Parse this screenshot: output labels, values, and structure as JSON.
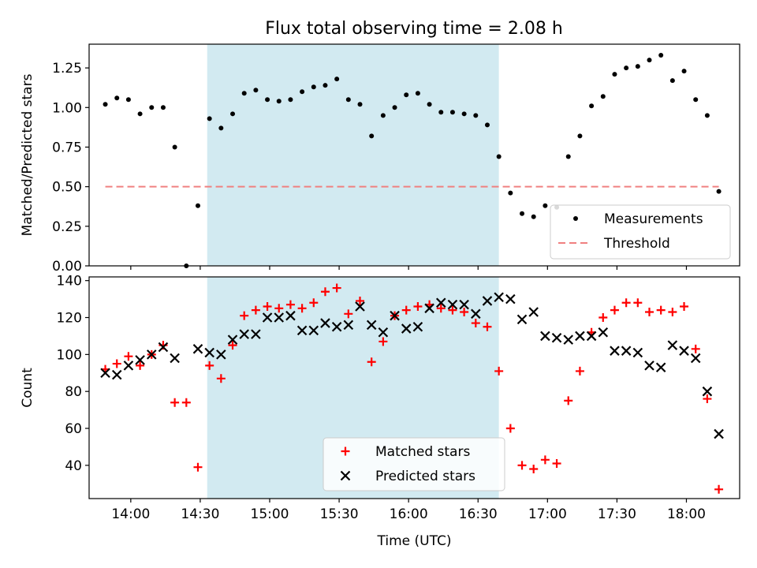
{
  "title": "Flux total observing time = 2.08 h",
  "colors": {
    "shade": "#add8e6",
    "measurement": "#000000",
    "threshold": "#f08080",
    "matched": "#ff0000",
    "predicted": "#000000"
  },
  "chart_data": [
    {
      "type": "scatter",
      "name": "ratio",
      "ylabel": "Matched/Predicted stars",
      "xlabel": "",
      "ylim": [
        0,
        1.4
      ],
      "yticks": [
        0.0,
        0.25,
        0.5,
        0.75,
        1.0,
        1.25
      ],
      "ytick_labels": [
        "0.00",
        "0.25",
        "0.50",
        "0.75",
        "1.00",
        "1.25"
      ],
      "xlim": [
        "13:42",
        "18:23"
      ],
      "shaded_interval": [
        "14:33",
        "16:39"
      ],
      "legend": "lower-right",
      "threshold": {
        "name": "Threshold",
        "value": 0.5,
        "x": [
          "13:49",
          "18:14"
        ]
      },
      "series": [
        {
          "name": "Measurements",
          "x": [
            "13:49",
            "13:54",
            "13:59",
            "14:04",
            "14:09",
            "14:14",
            "14:19",
            "14:24",
            "14:29",
            "14:34",
            "14:39",
            "14:44",
            "14:49",
            "14:54",
            "14:59",
            "15:04",
            "15:09",
            "15:14",
            "15:19",
            "15:24",
            "15:29",
            "15:34",
            "15:39",
            "15:44",
            "15:49",
            "15:54",
            "15:59",
            "16:04",
            "16:09",
            "16:14",
            "16:19",
            "16:24",
            "16:29",
            "16:34",
            "16:39",
            "16:44",
            "16:49",
            "16:54",
            "16:59",
            "17:04",
            "17:09",
            "17:14",
            "17:19",
            "17:24",
            "17:29",
            "17:34",
            "17:39",
            "17:44",
            "17:49",
            "17:54",
            "17:59",
            "18:04",
            "18:09",
            "18:14"
          ],
          "y": [
            1.02,
            1.06,
            1.05,
            0.96,
            1.0,
            1.0,
            0.75,
            0.0,
            0.38,
            0.93,
            0.87,
            0.96,
            1.09,
            1.11,
            1.05,
            1.04,
            1.05,
            1.1,
            1.13,
            1.14,
            1.18,
            1.05,
            1.02,
            0.82,
            0.95,
            1.0,
            1.08,
            1.09,
            1.02,
            0.97,
            0.97,
            0.96,
            0.95,
            0.89,
            0.69,
            0.46,
            0.33,
            0.31,
            0.38,
            0.37,
            0.69,
            0.82,
            1.01,
            1.07,
            1.21,
            1.25,
            1.26,
            1.3,
            1.33,
            1.17,
            1.23,
            1.05,
            0.95,
            0.47
          ]
        }
      ]
    },
    {
      "type": "scatter",
      "name": "counts",
      "ylabel": "Count",
      "xlabel": "Time (UTC)",
      "ylim": [
        22,
        142
      ],
      "yticks": [
        40,
        60,
        80,
        100,
        120,
        140
      ],
      "ytick_labels": [
        "40",
        "60",
        "80",
        "100",
        "120",
        "140"
      ],
      "xlim": [
        "13:42",
        "18:23"
      ],
      "xticks": [
        "14:00",
        "14:30",
        "15:00",
        "15:30",
        "16:00",
        "16:30",
        "17:00",
        "17:30",
        "18:00"
      ],
      "xtick_labels": [
        "14:00",
        "14:30",
        "15:00",
        "15:30",
        "16:00",
        "16:30",
        "17:00",
        "17:30",
        "18:00"
      ],
      "shaded_interval": [
        "14:33",
        "16:39"
      ],
      "legend": "lower-center",
      "series": [
        {
          "name": "Matched stars",
          "marker": "plus",
          "x": [
            "13:49",
            "13:54",
            "13:59",
            "14:04",
            "14:09",
            "14:14",
            "14:19",
            "14:24",
            "14:29",
            "14:34",
            "14:39",
            "14:44",
            "14:49",
            "14:54",
            "14:59",
            "15:04",
            "15:09",
            "15:14",
            "15:19",
            "15:24",
            "15:29",
            "15:34",
            "15:39",
            "15:44",
            "15:49",
            "15:54",
            "15:59",
            "16:04",
            "16:09",
            "16:14",
            "16:19",
            "16:24",
            "16:29",
            "16:34",
            "16:39",
            "16:44",
            "16:49",
            "16:54",
            "16:59",
            "17:04",
            "17:09",
            "17:14",
            "17:19",
            "17:24",
            "17:29",
            "17:34",
            "17:39",
            "17:44",
            "17:49",
            "17:54",
            "17:59",
            "18:04",
            "18:09",
            "18:14"
          ],
          "y": [
            92,
            95,
            99,
            94,
            100,
            105,
            74,
            74,
            39,
            94,
            87,
            105,
            121,
            124,
            126,
            125,
            127,
            125,
            128,
            134,
            136,
            122,
            129,
            96,
            107,
            121,
            124,
            126,
            127,
            125,
            124,
            123,
            117,
            115,
            91,
            60,
            40,
            38,
            43,
            41,
            75,
            91,
            112,
            120,
            124,
            128,
            128,
            123,
            124,
            123,
            126,
            103,
            76,
            27
          ]
        },
        {
          "name": "Predicted stars",
          "marker": "x",
          "x": [
            "13:49",
            "13:54",
            "13:59",
            "14:04",
            "14:09",
            "14:14",
            "14:19",
            "14:29",
            "14:34",
            "14:39",
            "14:44",
            "14:49",
            "14:54",
            "14:59",
            "15:04",
            "15:09",
            "15:14",
            "15:19",
            "15:24",
            "15:29",
            "15:34",
            "15:39",
            "15:44",
            "15:49",
            "15:54",
            "15:59",
            "16:04",
            "16:09",
            "16:14",
            "16:19",
            "16:24",
            "16:29",
            "16:34",
            "16:39",
            "16:44",
            "16:49",
            "16:54",
            "16:59",
            "17:04",
            "17:09",
            "17:14",
            "17:19",
            "17:24",
            "17:29",
            "17:34",
            "17:39",
            "17:44",
            "17:49",
            "17:54",
            "17:59",
            "18:04",
            "18:09",
            "18:14"
          ],
          "y": [
            90,
            89,
            94,
            97,
            100,
            104,
            98,
            103,
            101,
            100,
            108,
            111,
            111,
            120,
            120,
            121,
            113,
            113,
            117,
            115,
            116,
            126,
            116,
            112,
            121,
            114,
            115,
            125,
            128,
            127,
            127,
            122,
            129,
            131,
            130,
            119,
            123,
            110,
            109,
            108,
            110,
            110,
            112,
            102,
            102,
            101,
            94,
            93,
            105,
            102,
            98,
            80,
            57
          ]
        }
      ]
    }
  ]
}
